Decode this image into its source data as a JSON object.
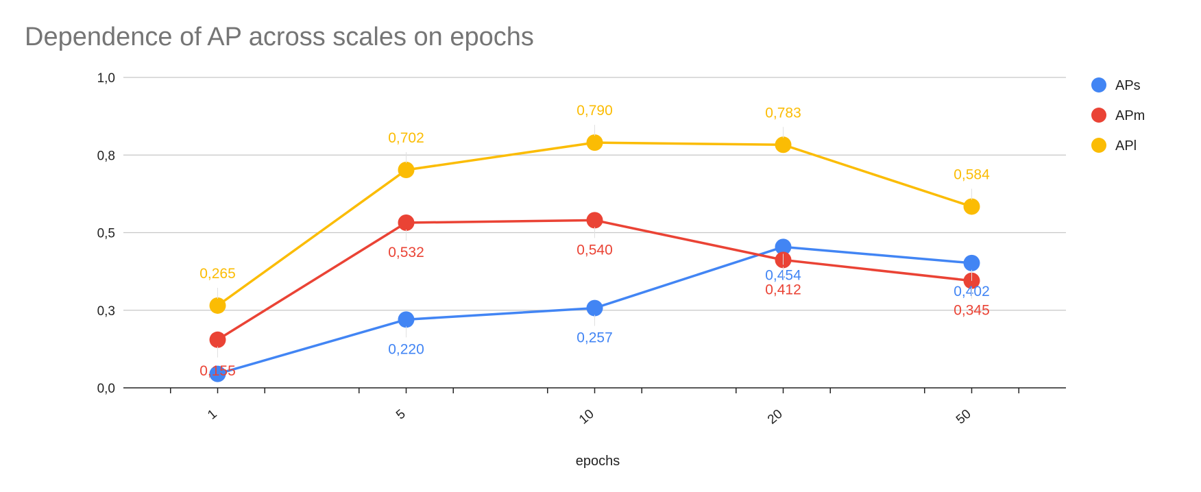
{
  "chart_data": {
    "type": "line",
    "title": "Dependence of AP across scales on epochs",
    "xlabel": "epochs",
    "ylabel": "",
    "categories": [
      "1",
      "5",
      "10",
      "20",
      "50"
    ],
    "y_ticks": [
      "0,0",
      "0,3",
      "0,5",
      "0,8",
      "1,0"
    ],
    "y_tick_values": [
      0.0,
      0.25,
      0.5,
      0.75,
      1.0
    ],
    "ylim": [
      0,
      1
    ],
    "grid": true,
    "legend_position": "right",
    "series": [
      {
        "name": "APs",
        "color": "#4285F4",
        "values": [
          0.045,
          0.22,
          0.257,
          0.454,
          0.402
        ],
        "labels": [
          "",
          "0,220",
          "0,257",
          "0,454",
          "0,402"
        ]
      },
      {
        "name": "APm",
        "color": "#EA4335",
        "values": [
          0.155,
          0.532,
          0.54,
          0.412,
          0.345
        ],
        "labels": [
          "0,155",
          "0,532",
          "0,540",
          "0,412",
          "0,345"
        ]
      },
      {
        "name": "APl",
        "color": "#FBBC04",
        "values": [
          0.265,
          0.702,
          0.79,
          0.783,
          0.584
        ],
        "labels": [
          "0,265",
          "0,702",
          "0,790",
          "0,783",
          "0,584"
        ]
      }
    ]
  }
}
